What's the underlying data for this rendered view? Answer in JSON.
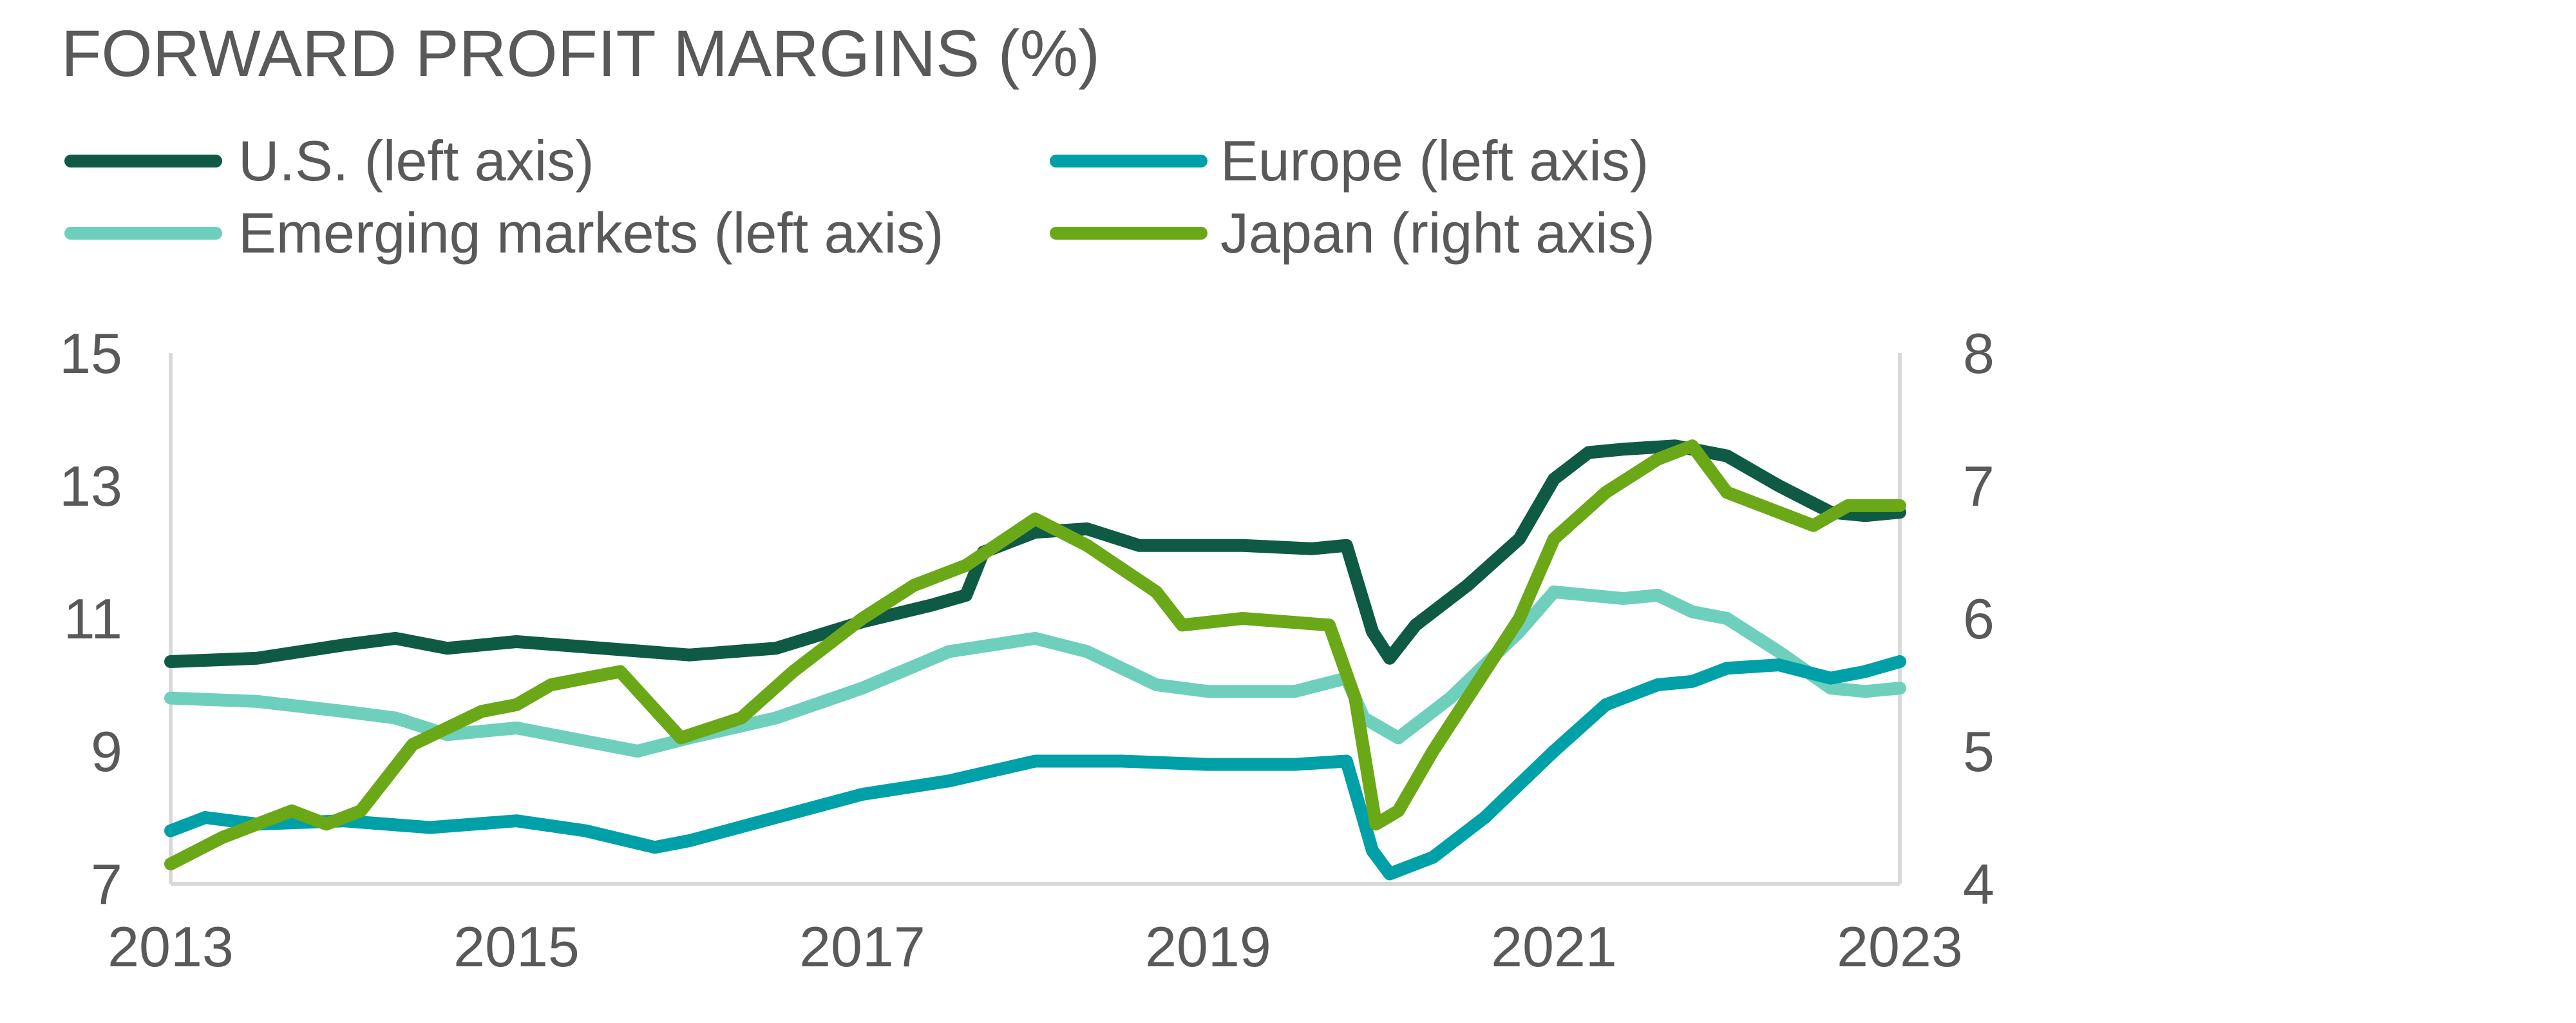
{
  "chart_data": {
    "type": "line",
    "title": "FORWARD PROFIT MARGINS (%)",
    "xlabel": "",
    "ylabel": "",
    "x_ticks": [
      "2013",
      "2015",
      "2017",
      "2019",
      "2021",
      "2023"
    ],
    "xlim": [
      2013,
      2023
    ],
    "ylim_left": [
      7,
      15
    ],
    "ylim_right": [
      4,
      8
    ],
    "y_ticks_left": [
      "15",
      "13",
      "11",
      "9",
      "7"
    ],
    "y_ticks_right": [
      "8",
      "7",
      "6",
      "5",
      "4"
    ],
    "grid": false,
    "legend_position": "top",
    "series": [
      {
        "name": "U.S. (left axis)",
        "axis": "left",
        "color": "#0f5a45",
        "points": [
          [
            2013.0,
            10.35
          ],
          [
            2013.5,
            10.4
          ],
          [
            2014.0,
            10.6
          ],
          [
            2014.3,
            10.7
          ],
          [
            2014.6,
            10.55
          ],
          [
            2015.0,
            10.65
          ],
          [
            2015.5,
            10.55
          ],
          [
            2016.0,
            10.45
          ],
          [
            2016.5,
            10.55
          ],
          [
            2017.0,
            10.95
          ],
          [
            2017.4,
            11.2
          ],
          [
            2017.6,
            11.35
          ],
          [
            2017.7,
            12.0
          ],
          [
            2018.0,
            12.3
          ],
          [
            2018.3,
            12.35
          ],
          [
            2018.6,
            12.1
          ],
          [
            2018.9,
            12.1
          ],
          [
            2019.2,
            12.1
          ],
          [
            2019.6,
            12.05
          ],
          [
            2019.8,
            12.1
          ],
          [
            2019.95,
            10.8
          ],
          [
            2020.05,
            10.4
          ],
          [
            2020.2,
            10.9
          ],
          [
            2020.5,
            11.5
          ],
          [
            2020.8,
            12.2
          ],
          [
            2021.0,
            13.1
          ],
          [
            2021.2,
            13.5
          ],
          [
            2021.4,
            13.55
          ],
          [
            2021.7,
            13.6
          ],
          [
            2022.0,
            13.45
          ],
          [
            2022.3,
            13.0
          ],
          [
            2022.6,
            12.6
          ],
          [
            2022.8,
            12.55
          ],
          [
            2023.0,
            12.6
          ]
        ]
      },
      {
        "name": "Europe (left axis)",
        "axis": "left",
        "color": "#00a0a8",
        "points": [
          [
            2013.0,
            7.8
          ],
          [
            2013.2,
            8.0
          ],
          [
            2013.5,
            7.9
          ],
          [
            2014.0,
            7.95
          ],
          [
            2014.5,
            7.85
          ],
          [
            2015.0,
            7.95
          ],
          [
            2015.4,
            7.8
          ],
          [
            2015.8,
            7.55
          ],
          [
            2016.0,
            7.65
          ],
          [
            2016.5,
            8.0
          ],
          [
            2017.0,
            8.35
          ],
          [
            2017.5,
            8.55
          ],
          [
            2018.0,
            8.85
          ],
          [
            2018.5,
            8.85
          ],
          [
            2019.0,
            8.8
          ],
          [
            2019.5,
            8.8
          ],
          [
            2019.8,
            8.85
          ],
          [
            2019.95,
            7.5
          ],
          [
            2020.05,
            7.15
          ],
          [
            2020.3,
            7.4
          ],
          [
            2020.6,
            8.0
          ],
          [
            2021.0,
            9.0
          ],
          [
            2021.3,
            9.7
          ],
          [
            2021.6,
            10.0
          ],
          [
            2021.8,
            10.05
          ],
          [
            2022.0,
            10.25
          ],
          [
            2022.3,
            10.3
          ],
          [
            2022.6,
            10.1
          ],
          [
            2022.8,
            10.2
          ],
          [
            2023.0,
            10.35
          ]
        ]
      },
      {
        "name": "Emerging markets (left axis)",
        "axis": "left",
        "color": "#6fcfbd",
        "points": [
          [
            2013.0,
            9.8
          ],
          [
            2013.5,
            9.75
          ],
          [
            2014.0,
            9.6
          ],
          [
            2014.3,
            9.5
          ],
          [
            2014.6,
            9.25
          ],
          [
            2015.0,
            9.35
          ],
          [
            2015.3,
            9.2
          ],
          [
            2015.7,
            9.0
          ],
          [
            2016.0,
            9.2
          ],
          [
            2016.5,
            9.5
          ],
          [
            2017.0,
            9.95
          ],
          [
            2017.5,
            10.5
          ],
          [
            2018.0,
            10.7
          ],
          [
            2018.3,
            10.5
          ],
          [
            2018.7,
            10.0
          ],
          [
            2019.0,
            9.9
          ],
          [
            2019.5,
            9.9
          ],
          [
            2019.8,
            10.1
          ],
          [
            2019.9,
            9.5
          ],
          [
            2020.1,
            9.2
          ],
          [
            2020.4,
            9.8
          ],
          [
            2020.8,
            10.8
          ],
          [
            2021.0,
            11.4
          ],
          [
            2021.4,
            11.3
          ],
          [
            2021.6,
            11.35
          ],
          [
            2021.8,
            11.1
          ],
          [
            2022.0,
            11.0
          ],
          [
            2022.3,
            10.5
          ],
          [
            2022.6,
            9.95
          ],
          [
            2022.8,
            9.9
          ],
          [
            2023.0,
            9.95
          ]
        ]
      },
      {
        "name": "Japan (right axis)",
        "axis": "right",
        "color": "#6aa818",
        "points": [
          [
            2013.0,
            4.15
          ],
          [
            2013.3,
            4.35
          ],
          [
            2013.7,
            4.55
          ],
          [
            2013.9,
            4.45
          ],
          [
            2014.1,
            4.55
          ],
          [
            2014.4,
            5.05
          ],
          [
            2014.8,
            5.3
          ],
          [
            2015.0,
            5.35
          ],
          [
            2015.2,
            5.5
          ],
          [
            2015.6,
            5.6
          ],
          [
            2015.95,
            5.1
          ],
          [
            2016.3,
            5.25
          ],
          [
            2016.6,
            5.6
          ],
          [
            2017.0,
            6.0
          ],
          [
            2017.3,
            6.25
          ],
          [
            2017.6,
            6.4
          ],
          [
            2018.0,
            6.75
          ],
          [
            2018.3,
            6.55
          ],
          [
            2018.7,
            6.2
          ],
          [
            2018.85,
            5.95
          ],
          [
            2019.2,
            6.0
          ],
          [
            2019.7,
            5.95
          ],
          [
            2019.85,
            5.4
          ],
          [
            2019.97,
            4.45
          ],
          [
            2020.1,
            4.55
          ],
          [
            2020.3,
            5.0
          ],
          [
            2020.6,
            5.6
          ],
          [
            2020.8,
            6.0
          ],
          [
            2021.0,
            6.6
          ],
          [
            2021.3,
            6.95
          ],
          [
            2021.6,
            7.2
          ],
          [
            2021.8,
            7.3
          ],
          [
            2022.0,
            6.95
          ],
          [
            2022.3,
            6.8
          ],
          [
            2022.5,
            6.7
          ],
          [
            2022.7,
            6.85
          ],
          [
            2023.0,
            6.85
          ]
        ]
      }
    ]
  }
}
